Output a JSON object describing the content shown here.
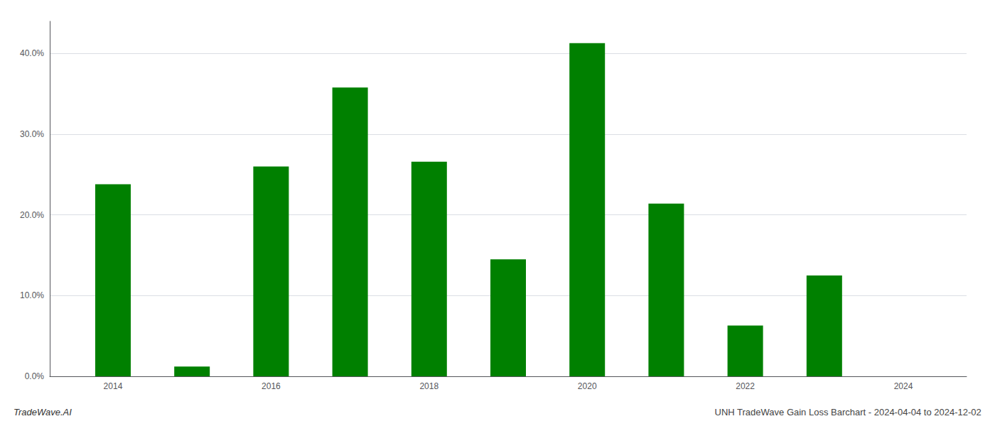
{
  "chart_data": {
    "type": "bar",
    "x": [
      2014,
      2015,
      2016,
      2017,
      2018,
      2019,
      2020,
      2021,
      2022,
      2023,
      2024
    ],
    "values": [
      23.8,
      1.2,
      26.0,
      35.8,
      26.6,
      14.5,
      41.3,
      21.4,
      6.3,
      12.5,
      0.0
    ],
    "color": "#008000",
    "xlim": [
      2013.2,
      2024.8
    ],
    "xticks": [
      2014,
      2016,
      2018,
      2020,
      2022,
      2024
    ],
    "ylim": [
      0,
      44
    ],
    "yticks": [
      {
        "value": 0,
        "label": "0.0%"
      },
      {
        "value": 10,
        "label": "10.0%"
      },
      {
        "value": 20,
        "label": "20.0%"
      },
      {
        "value": 30,
        "label": "30.0%"
      },
      {
        "value": 40,
        "label": "40.0%"
      }
    ],
    "grid": true,
    "annotations": [
      "TradeWave.AI",
      "UNH TradeWave Gain Loss Barchart - 2024-04-04 to 2024-12-02"
    ]
  }
}
